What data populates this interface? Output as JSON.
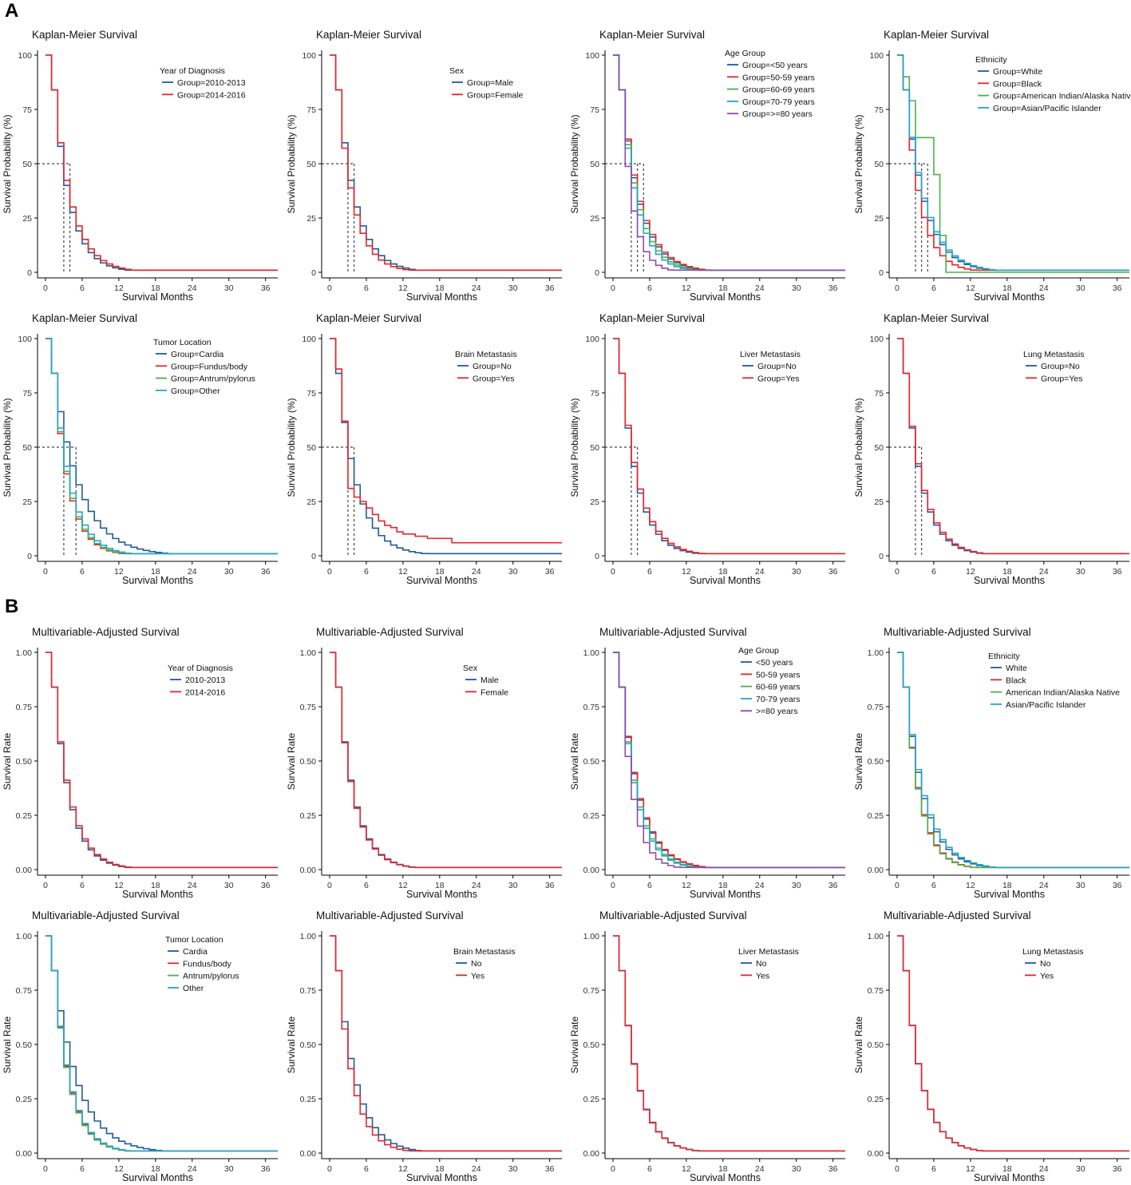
{
  "figure": {
    "label_A": "A",
    "label_B": "B",
    "colors": {
      "blue": "#1f5a9e",
      "red": "#e8262b",
      "green": "#4bb04b",
      "cyan": "#23a6c9",
      "purple": "#8b4dab",
      "axis": "#000000",
      "median": "#444444"
    }
  },
  "chart_data": [
    {
      "type": "line",
      "step": true,
      "section": "A",
      "title": "Kaplan-Meier Survival",
      "xlabel": "Survival Months",
      "ylabel": "Survival Probability (%)",
      "xlim": [
        0,
        38
      ],
      "ylim": [
        0,
        100
      ],
      "xticks": [
        0,
        6,
        12,
        18,
        24,
        30,
        36
      ],
      "yticks": [
        0,
        25,
        50,
        75,
        100
      ],
      "legend_title": "Year of Diagnosis",
      "series": [
        {
          "name": "Group=2010-2013",
          "color": "blue",
          "S": 0.69
        },
        {
          "name": "Group=2014-2016",
          "color": "red",
          "S": 0.71
        }
      ],
      "medians": [
        3,
        4
      ]
    },
    {
      "type": "line",
      "step": true,
      "section": "A",
      "title": "Kaplan-Meier Survival",
      "xlabel": "Survival Months",
      "ylabel": "Survival Probability (%)",
      "xlim": [
        0,
        38
      ],
      "ylim": [
        0,
        100
      ],
      "xticks": [
        0,
        6,
        12,
        18,
        24,
        30,
        36
      ],
      "yticks": [
        0,
        25,
        50,
        75,
        100
      ],
      "legend_title": "Sex",
      "series": [
        {
          "name": "Group=Male",
          "color": "blue",
          "S": 0.71
        },
        {
          "name": "Group=Female",
          "color": "red",
          "S": 0.68
        }
      ],
      "medians": [
        3,
        4
      ]
    },
    {
      "type": "line",
      "step": true,
      "section": "A",
      "title": "Kaplan-Meier Survival",
      "xlabel": "Survival Months",
      "ylabel": "Survival Probability (%)",
      "xlim": [
        0,
        38
      ],
      "ylim": [
        0,
        100
      ],
      "xticks": [
        0,
        6,
        12,
        18,
        24,
        30,
        36
      ],
      "yticks": [
        0,
        25,
        50,
        75,
        100
      ],
      "legend_title": "Age Group",
      "series": [
        {
          "name": "Group=<50 years",
          "color": "blue",
          "S": 0.72
        },
        {
          "name": "Group=50-59 years",
          "color": "red",
          "S": 0.73
        },
        {
          "name": "Group=60-69 years",
          "color": "green",
          "S": 0.7
        },
        {
          "name": "Group=70-79 years",
          "color": "cyan",
          "S": 0.68
        },
        {
          "name": "Group=>=80 years",
          "color": "purple",
          "S": 0.58
        }
      ],
      "medians": [
        3,
        4,
        5
      ]
    },
    {
      "type": "line",
      "step": true,
      "section": "A",
      "title": "Kaplan-Meier Survival",
      "xlabel": "Survival Months",
      "ylabel": "Survival Probability (%)",
      "xlim": [
        0,
        38
      ],
      "ylim": [
        0,
        100
      ],
      "xticks": [
        0,
        6,
        12,
        18,
        24,
        30,
        36
      ],
      "yticks": [
        0,
        25,
        50,
        75,
        100
      ],
      "legend_title": "Ethnicity",
      "series": [
        {
          "name": "Group=White",
          "color": "blue",
          "S": 0.73
        },
        {
          "name": "Group=Black",
          "color": "red",
          "S": 0.67
        },
        {
          "name": "Group=American Indian/Alaska Native",
          "color": "green",
          "points": [
            [
              0,
              100
            ],
            [
              1,
              90
            ],
            [
              2,
              79
            ],
            [
              3,
              62
            ],
            [
              4,
              62
            ],
            [
              5,
              62
            ],
            [
              6,
              45
            ],
            [
              7,
              17
            ],
            [
              8,
              0
            ]
          ]
        },
        {
          "name": "Group=Asian/Pacific Islander",
          "color": "cyan",
          "S": 0.74
        }
      ],
      "medians": [
        3,
        4,
        5
      ]
    },
    {
      "type": "line",
      "step": true,
      "section": "A",
      "title": "Kaplan-Meier Survival",
      "xlabel": "Survival Months",
      "ylabel": "Survival Probability (%)",
      "xlim": [
        0,
        38
      ],
      "ylim": [
        0,
        100
      ],
      "xticks": [
        0,
        6,
        12,
        18,
        24,
        30,
        36
      ],
      "yticks": [
        0,
        25,
        50,
        75,
        100
      ],
      "legend_title": "Tumor Location",
      "series": [
        {
          "name": "Group=Cardia",
          "color": "blue",
          "S": 0.79
        },
        {
          "name": "Group=Fundus/body",
          "color": "red",
          "S": 0.67
        },
        {
          "name": "Group=Antrum/pylorus",
          "color": "green",
          "S": 0.68
        },
        {
          "name": "Group=Other",
          "color": "cyan",
          "S": 0.7
        }
      ],
      "medians": [
        3,
        5
      ]
    },
    {
      "type": "line",
      "step": true,
      "section": "A",
      "title": "Kaplan-Meier Survival",
      "xlabel": "Survival Months",
      "ylabel": "Survival Probability (%)",
      "xlim": [
        0,
        38
      ],
      "ylim": [
        0,
        100
      ],
      "xticks": [
        0,
        6,
        12,
        18,
        24,
        30,
        36
      ],
      "yticks": [
        0,
        25,
        50,
        75,
        100
      ],
      "legend_title": "Brain Metastasis",
      "series": [
        {
          "name": "Group=No",
          "color": "blue",
          "S": 0.73
        },
        {
          "name": "Group=Yes",
          "color": "red",
          "points": [
            [
              0,
              100
            ],
            [
              1,
              86
            ],
            [
              2,
              62
            ],
            [
              3,
              31
            ],
            [
              4,
              27
            ],
            [
              5,
              25
            ],
            [
              6,
              22
            ],
            [
              7,
              19
            ],
            [
              8,
              16
            ],
            [
              9,
              14
            ],
            [
              10,
              13
            ],
            [
              11,
              11
            ],
            [
              12,
              10
            ],
            [
              14,
              9
            ],
            [
              16,
              8
            ],
            [
              20,
              6
            ],
            [
              38,
              6
            ]
          ]
        }
      ],
      "medians": [
        3,
        4
      ]
    },
    {
      "type": "line",
      "step": true,
      "section": "A",
      "title": "Kaplan-Meier Survival",
      "xlabel": "Survival Months",
      "ylabel": "Survival Probability (%)",
      "xlim": [
        0,
        38
      ],
      "ylim": [
        0,
        100
      ],
      "xticks": [
        0,
        6,
        12,
        18,
        24,
        30,
        36
      ],
      "yticks": [
        0,
        25,
        50,
        75,
        100
      ],
      "legend_title": "Liver Metastasis",
      "series": [
        {
          "name": "Group=No",
          "color": "blue",
          "S": 0.7
        },
        {
          "name": "Group=Yes",
          "color": "red",
          "S": 0.715
        }
      ],
      "medians": [
        3,
        4
      ]
    },
    {
      "type": "line",
      "step": true,
      "section": "A",
      "title": "Kaplan-Meier Survival",
      "xlabel": "Survival Months",
      "ylabel": "Survival Probability (%)",
      "xlim": [
        0,
        38
      ],
      "ylim": [
        0,
        100
      ],
      "xticks": [
        0,
        6,
        12,
        18,
        24,
        30,
        36
      ],
      "yticks": [
        0,
        25,
        50,
        75,
        100
      ],
      "legend_title": "Lung Metastasis",
      "series": [
        {
          "name": "Group=No",
          "color": "blue",
          "S": 0.7
        },
        {
          "name": "Group=Yes",
          "color": "red",
          "S": 0.71
        }
      ],
      "medians": [
        3,
        4
      ]
    },
    {
      "type": "line",
      "step": true,
      "section": "B",
      "title": "Multivariable-Adjusted Survival",
      "xlabel": "Survival Months",
      "ylabel": "Survival Rate",
      "xlim": [
        0,
        38
      ],
      "ylim": [
        0,
        1
      ],
      "xticks": [
        0,
        6,
        12,
        18,
        24,
        30,
        36
      ],
      "yticks": [
        0.0,
        0.25,
        0.5,
        0.75,
        1.0
      ],
      "legend_title": "Year of Diagnosis",
      "series": [
        {
          "name": "2010-2013",
          "color": "blue",
          "S": 0.69
        },
        {
          "name": "2014-2016",
          "color": "red",
          "S": 0.7
        }
      ]
    },
    {
      "type": "line",
      "step": true,
      "section": "B",
      "title": "Multivariable-Adjusted Survival",
      "xlabel": "Survival Months",
      "ylabel": "Survival Rate",
      "xlim": [
        0,
        38
      ],
      "ylim": [
        0,
        1
      ],
      "xticks": [
        0,
        6,
        12,
        18,
        24,
        30,
        36
      ],
      "yticks": [
        0.0,
        0.25,
        0.5,
        0.75,
        1.0
      ],
      "legend_title": "Sex",
      "series": [
        {
          "name": "Male",
          "color": "blue",
          "S": 0.7
        },
        {
          "name": "Female",
          "color": "red",
          "S": 0.695
        }
      ]
    },
    {
      "type": "line",
      "step": true,
      "section": "B",
      "title": "Multivariable-Adjusted Survival",
      "xlabel": "Survival Months",
      "ylabel": "Survival Rate",
      "xlim": [
        0,
        38
      ],
      "ylim": [
        0,
        1
      ],
      "xticks": [
        0,
        6,
        12,
        18,
        24,
        30,
        36
      ],
      "yticks": [
        0.0,
        0.25,
        0.5,
        0.75,
        1.0
      ],
      "legend_title": "Age Group",
      "series": [
        {
          "name": "<50 years",
          "color": "blue",
          "S": 0.725
        },
        {
          "name": "50-59 years",
          "color": "red",
          "S": 0.73
        },
        {
          "name": "60-69 years",
          "color": "green",
          "S": 0.7
        },
        {
          "name": "70-79 years",
          "color": "cyan",
          "S": 0.69
        },
        {
          "name": ">=80 years",
          "color": "purple",
          "S": 0.62
        }
      ]
    },
    {
      "type": "line",
      "step": true,
      "section": "B",
      "title": "Multivariable-Adjusted Survival",
      "xlabel": "Survival Months",
      "ylabel": "Survival Rate",
      "xlim": [
        0,
        38
      ],
      "ylim": [
        0,
        1
      ],
      "xticks": [
        0,
        6,
        12,
        18,
        24,
        30,
        36
      ],
      "yticks": [
        0.0,
        0.25,
        0.5,
        0.75,
        1.0
      ],
      "legend_title": "Ethnicity",
      "series": [
        {
          "name": "White",
          "color": "blue",
          "S": 0.73
        },
        {
          "name": "Black",
          "color": "red",
          "S": 0.67
        },
        {
          "name": "American Indian/Alaska Native",
          "color": "green",
          "S": 0.665
        },
        {
          "name": "Asian/Pacific Islander",
          "color": "cyan",
          "S": 0.74
        }
      ]
    },
    {
      "type": "line",
      "step": true,
      "section": "B",
      "title": "Multivariable-Adjusted Survival",
      "xlabel": "Survival Months",
      "ylabel": "Survival Rate",
      "xlim": [
        0,
        38
      ],
      "ylim": [
        0,
        1
      ],
      "xticks": [
        0,
        6,
        12,
        18,
        24,
        30,
        36
      ],
      "yticks": [
        0.0,
        0.25,
        0.5,
        0.75,
        1.0
      ],
      "legend_title": "Tumor Location",
      "series": [
        {
          "name": "Cardia",
          "color": "blue",
          "S": 0.78
        },
        {
          "name": "Fundus/body",
          "color": "red",
          "S": 0.69
        },
        {
          "name": "Antrum/pylorus",
          "color": "green",
          "S": 0.685
        },
        {
          "name": "Other",
          "color": "cyan",
          "S": 0.695
        }
      ]
    },
    {
      "type": "line",
      "step": true,
      "section": "B",
      "title": "Multivariable-Adjusted Survival",
      "xlabel": "Survival Months",
      "ylabel": "Survival Rate",
      "xlim": [
        0,
        38
      ],
      "ylim": [
        0,
        1
      ],
      "xticks": [
        0,
        6,
        12,
        18,
        24,
        30,
        36
      ],
      "yticks": [
        0.0,
        0.25,
        0.5,
        0.75,
        1.0
      ],
      "legend_title": "Brain Metastasis",
      "series": [
        {
          "name": "No",
          "color": "blue",
          "S": 0.72
        },
        {
          "name": "Yes",
          "color": "red",
          "S": 0.68
        }
      ]
    },
    {
      "type": "line",
      "step": true,
      "section": "B",
      "title": "Multivariable-Adjusted Survival",
      "xlabel": "Survival Months",
      "ylabel": "Survival Rate",
      "xlim": [
        0,
        38
      ],
      "ylim": [
        0,
        1
      ],
      "xticks": [
        0,
        6,
        12,
        18,
        24,
        30,
        36
      ],
      "yticks": [
        0.0,
        0.25,
        0.5,
        0.75,
        1.0
      ],
      "legend_title": "Liver Metastasis",
      "series": [
        {
          "name": "No",
          "color": "blue",
          "S": 0.7
        },
        {
          "name": "Yes",
          "color": "red",
          "S": 0.698
        }
      ]
    },
    {
      "type": "line",
      "step": true,
      "section": "B",
      "title": "Multivariable-Adjusted Survival",
      "xlabel": "Survival Months",
      "ylabel": "Survival Rate",
      "xlim": [
        0,
        38
      ],
      "ylim": [
        0,
        1
      ],
      "xticks": [
        0,
        6,
        12,
        18,
        24,
        30,
        36
      ],
      "yticks": [
        0.0,
        0.25,
        0.5,
        0.75,
        1.0
      ],
      "legend_title": "Lung Metastasis",
      "series": [
        {
          "name": "No",
          "color": "blue",
          "S": 0.7
        },
        {
          "name": "Yes",
          "color": "red",
          "S": 0.699
        }
      ]
    }
  ]
}
